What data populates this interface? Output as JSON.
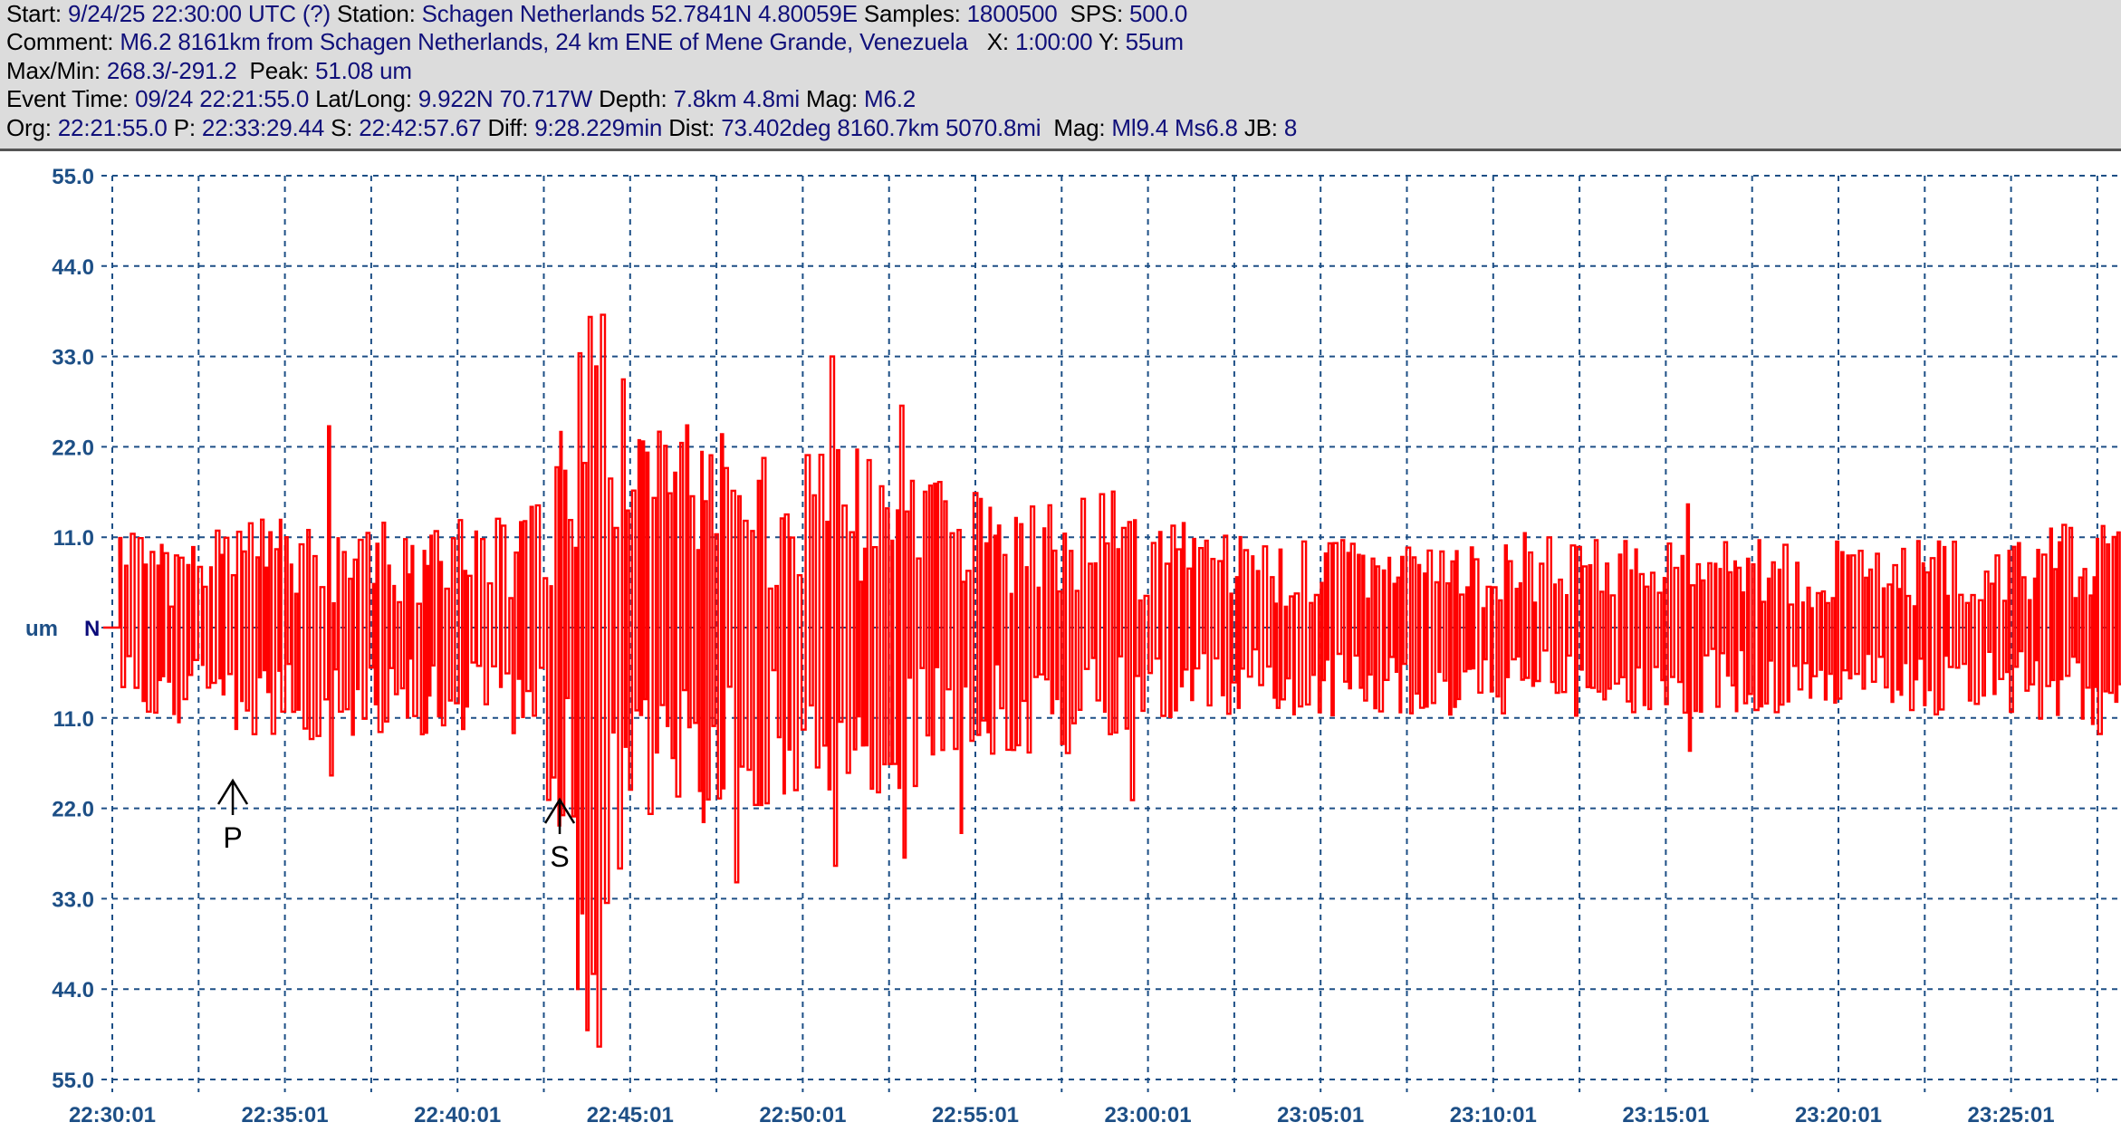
{
  "header": {
    "line1": [
      {
        "label": "Start: ",
        "value": "9/24/25 22:30:00 UTC (?)"
      },
      {
        "label": " Station: ",
        "value": "Schagen Netherlands 52.7841N 4.80059E"
      },
      {
        "label": " Samples: ",
        "value": "1800500"
      },
      {
        "label": "  SPS: ",
        "value": "500.0"
      }
    ],
    "line2": [
      {
        "label": "Comment: ",
        "value": "M6.2 8161km from Schagen Netherlands, 24 km ENE of Mene Grande, Venezuela"
      },
      {
        "label": "   X: ",
        "value": "1:00:00"
      },
      {
        "label": " Y: ",
        "value": "55um"
      }
    ],
    "line3": [
      {
        "label": "Max/Min: ",
        "value": "268.3/-291.2"
      },
      {
        "label": "  Peak: ",
        "value": "51.08 um"
      }
    ],
    "line4": [
      {
        "label": "Event Time: ",
        "value": "09/24 22:21:55.0"
      },
      {
        "label": " Lat/Long: ",
        "value": "9.922N 70.717W"
      },
      {
        "label": " Depth: ",
        "value": "7.8km 4.8mi"
      },
      {
        "label": " Mag: ",
        "value": "M6.2"
      }
    ],
    "line5": [
      {
        "label": "Org: ",
        "value": "22:21:55.0"
      },
      {
        "label": " P: ",
        "value": "22:33:29.44"
      },
      {
        "label": " S: ",
        "value": "22:42:57.67"
      },
      {
        "label": " Diff: ",
        "value": "9:28.229min"
      },
      {
        "label": " Dist: ",
        "value": "73.402deg 8160.7km 5070.8mi"
      },
      {
        "label": "  Mag: ",
        "value": "Ml9.4 Ms6.8"
      },
      {
        "label": " JB: ",
        "value": "8"
      }
    ]
  },
  "chart_data": {
    "type": "line",
    "ylabel": "um",
    "channel": "N",
    "x_start": "22:30:01",
    "x_span_minutes": 60,
    "x_grid_minutes": 2.5,
    "x_ticks": [
      "22:30:01",
      "22:35:01",
      "22:40:01",
      "22:45:01",
      "22:50:01",
      "22:55:01",
      "23:00:01",
      "23:05:01",
      "23:10:01",
      "23:15:01",
      "23:20:01",
      "23:25:01"
    ],
    "ylim": [
      -55,
      55
    ],
    "y_ticks": [
      {
        "value": 55,
        "label": "55.0"
      },
      {
        "value": 44,
        "label": "44.0"
      },
      {
        "value": 33,
        "label": "33.0"
      },
      {
        "value": 22,
        "label": "22.0"
      },
      {
        "value": 11,
        "label": "11.0"
      },
      {
        "value": -11,
        "label": "11.0"
      },
      {
        "value": -22,
        "label": "22.0"
      },
      {
        "value": -33,
        "label": "33.0"
      },
      {
        "value": -44,
        "label": "44.0"
      },
      {
        "value": -55,
        "label": "55.0"
      }
    ],
    "grid": true,
    "phases": [
      {
        "label": "P",
        "minute": 3.49
      },
      {
        "label": "S",
        "minute": 12.96
      }
    ],
    "amplitude_envelope_per_minute": [
      9,
      10,
      10,
      10,
      11,
      11,
      12,
      11,
      11,
      11,
      12,
      12,
      11,
      22,
      38,
      25,
      22,
      20,
      20,
      18,
      19,
      20,
      18,
      17,
      15,
      14,
      13,
      13,
      13,
      14,
      12,
      11,
      10,
      10,
      9,
      9,
      9,
      9,
      9,
      9,
      9,
      10,
      9,
      9,
      9,
      9,
      9,
      9,
      9,
      9,
      9,
      9,
      9,
      9,
      9,
      9,
      10,
      11
    ],
    "spikes": [
      {
        "minute": 6.2,
        "max": 24.5,
        "min": -18
      },
      {
        "minute": 13.4,
        "max": 41,
        "min": -44
      },
      {
        "minute": 13.7,
        "max": 43,
        "min": -49
      },
      {
        "minute": 14.0,
        "max": 47,
        "min": -51
      },
      {
        "minute": 18.0,
        "max": 30,
        "min": -31
      },
      {
        "minute": 20.8,
        "max": 33,
        "min": -29
      },
      {
        "minute": 22.8,
        "max": 27,
        "min": -28
      },
      {
        "minute": 24.5,
        "max": 25,
        "min": -25
      },
      {
        "minute": 29.5,
        "max": 20,
        "min": -21
      },
      {
        "minute": 45.6,
        "max": 15,
        "min": -15
      }
    ],
    "trace_color": "#ff0000",
    "grid_color": "#1d4f86"
  }
}
